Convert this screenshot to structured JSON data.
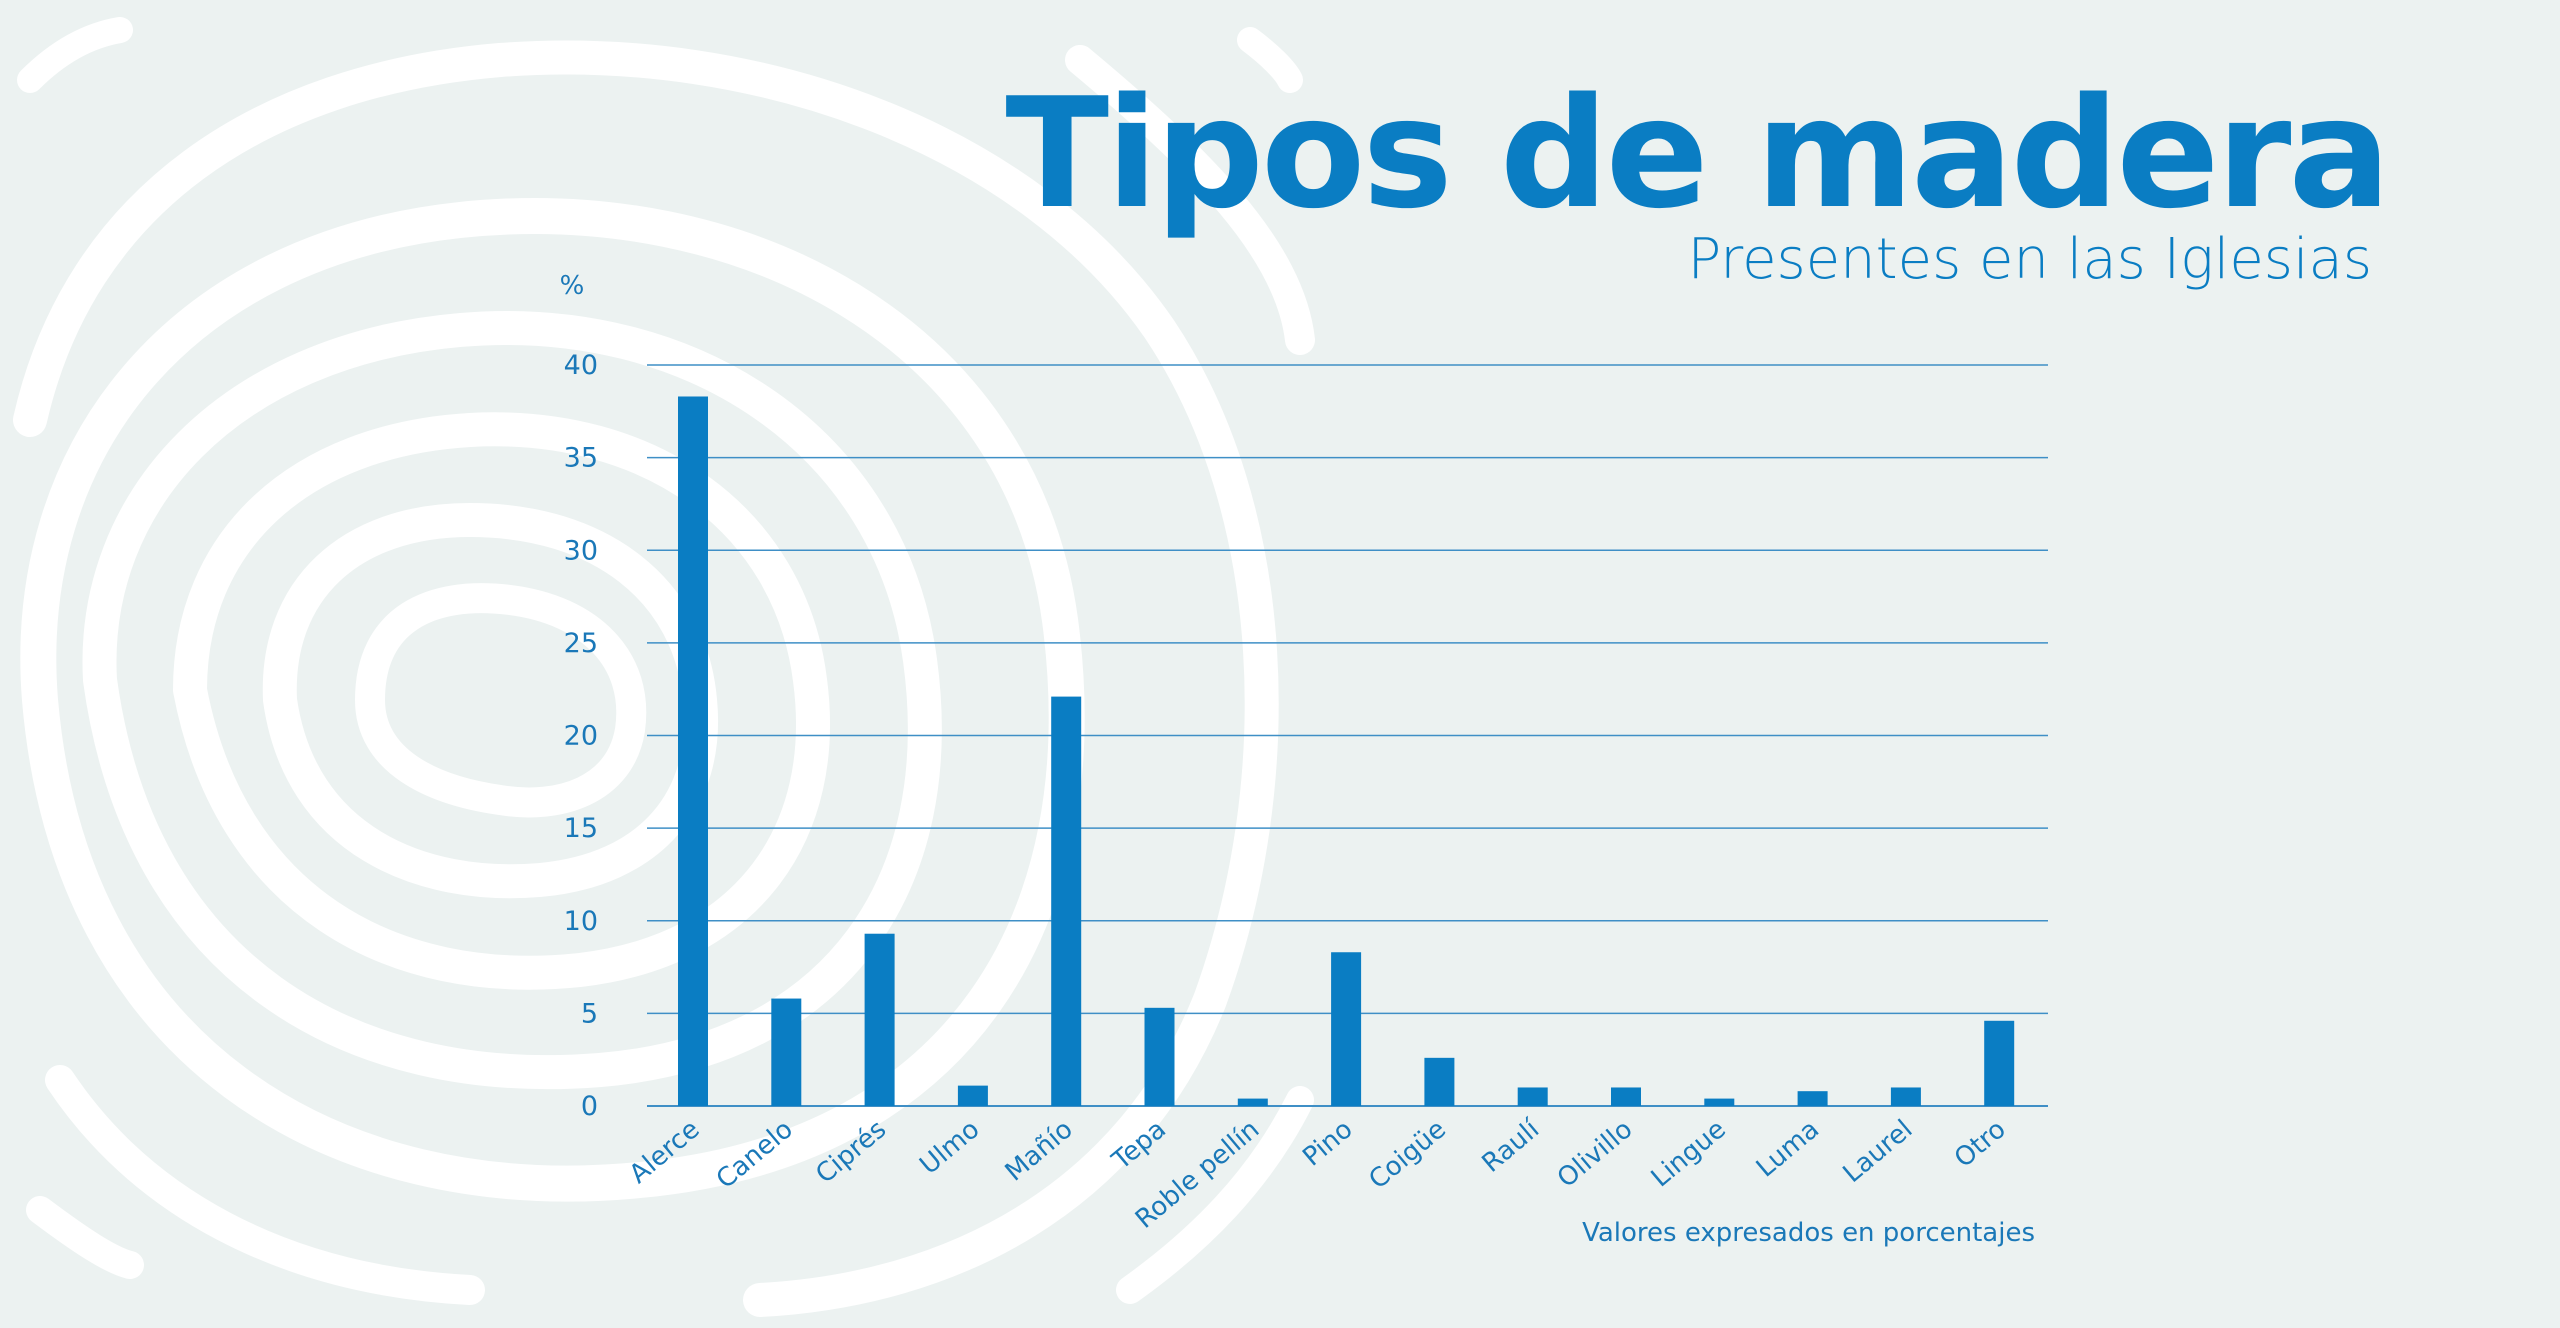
{
  "header": {
    "title": "Tipos de madera",
    "subtitle": "Presentes en las Iglesias"
  },
  "footnote": "Valores expresados en porcentajes",
  "colors": {
    "bar": "#0a7dc3",
    "text": "#1a78b8",
    "grid": "#3f8fc6",
    "background": "#ecf2f1",
    "rings": "#ffffff"
  },
  "chart_data": {
    "type": "bar",
    "categories": [
      "Alerce",
      "Canelo",
      "Ciprés",
      "Ulmo",
      "Mañío",
      "Tepa",
      "Roble pellín",
      "Pino",
      "Coigüe",
      "Raulí",
      "Olivillo",
      "Lingue",
      "Luma",
      "Laurel",
      "Otro"
    ],
    "values": [
      38.3,
      5.8,
      9.3,
      1.1,
      22.1,
      5.3,
      0.4,
      8.3,
      2.6,
      1.0,
      1.0,
      0.4,
      0.8,
      1.0,
      4.6
    ],
    "ylabel": "%",
    "ylim": [
      0,
      40
    ],
    "yticks": [
      "0",
      "5",
      "10",
      "15",
      "20",
      "25",
      "30",
      "35",
      "40"
    ],
    "grid": true
  }
}
